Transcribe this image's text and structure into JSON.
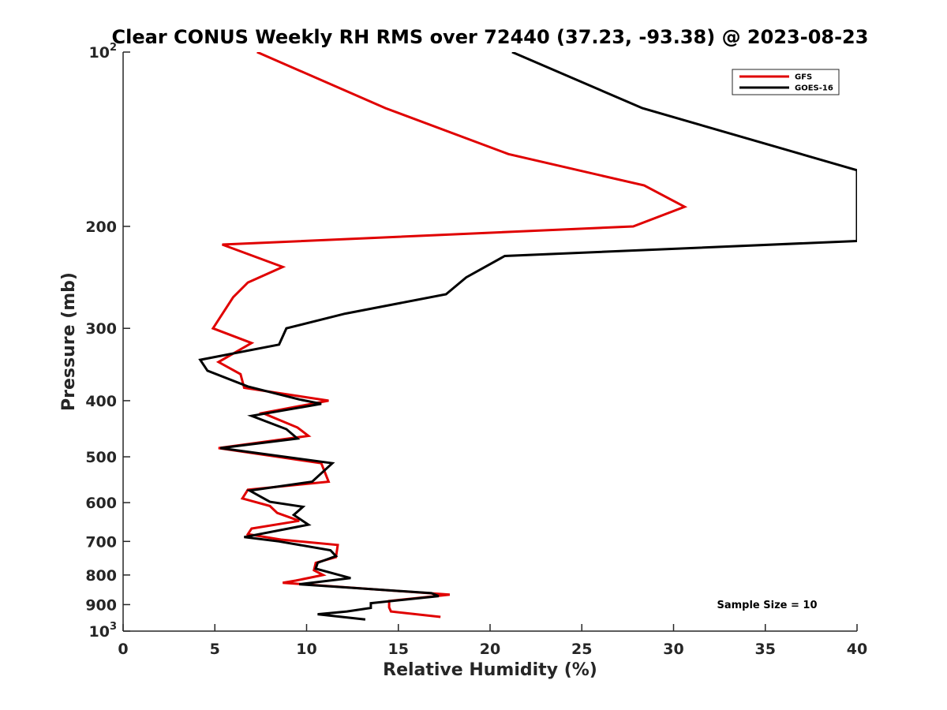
{
  "chart_data": {
    "type": "line",
    "title": "Clear CONUS Weekly RH RMS over 72440 (37.23, -93.38) @ 2023-08-23",
    "xlabel": "Relative Humidity (%)",
    "ylabel": "Pressure (mb)",
    "xlim": [
      0,
      40
    ],
    "ylim": [
      100,
      1000
    ],
    "y_scale": "log",
    "y_reversed": true,
    "x_ticks": [
      0,
      5,
      10,
      15,
      20,
      25,
      30,
      35,
      40
    ],
    "x_tick_labels": [
      "0",
      "5",
      "10",
      "15",
      "20",
      "25",
      "30",
      "35",
      "40"
    ],
    "y_ticks": [
      100,
      200,
      300,
      400,
      500,
      600,
      700,
      800,
      900,
      1000
    ],
    "y_tick_labels": [
      {
        "base": "10",
        "exp": "2"
      },
      {
        "base": "200"
      },
      {
        "base": "300"
      },
      {
        "base": "400"
      },
      {
        "base": "500"
      },
      {
        "base": "600"
      },
      {
        "base": "700"
      },
      {
        "base": "800"
      },
      {
        "base": "900"
      },
      {
        "base": "10",
        "exp": "3"
      }
    ],
    "grid": false,
    "legend_position": "top-right",
    "annotation": "Sample Size = 10",
    "series": [
      {
        "name": "GFS",
        "color": "#e00000",
        "points": [
          [
            7.3,
            100
          ],
          [
            14.3,
            125
          ],
          [
            21.0,
            150
          ],
          [
            28.4,
            170
          ],
          [
            30.6,
            185
          ],
          [
            27.8,
            200
          ],
          [
            5.4,
            215
          ],
          [
            8.7,
            235
          ],
          [
            6.8,
            250
          ],
          [
            6.0,
            265
          ],
          [
            4.9,
            300
          ],
          [
            7.0,
            318
          ],
          [
            5.2,
            343
          ],
          [
            6.4,
            360
          ],
          [
            6.6,
            380
          ],
          [
            11.2,
            400
          ],
          [
            7.6,
            420
          ],
          [
            9.5,
            445
          ],
          [
            10.1,
            460
          ],
          [
            5.2,
            483
          ],
          [
            10.8,
            513
          ],
          [
            11.2,
            552
          ],
          [
            6.8,
            570
          ],
          [
            6.5,
            590
          ],
          [
            8.0,
            608
          ],
          [
            8.4,
            625
          ],
          [
            9.6,
            645
          ],
          [
            7.0,
            665
          ],
          [
            6.8,
            680
          ],
          [
            8.6,
            695
          ],
          [
            11.7,
            710
          ],
          [
            11.6,
            745
          ],
          [
            10.5,
            762
          ],
          [
            10.4,
            785
          ],
          [
            10.9,
            800
          ],
          [
            9.4,
            818
          ],
          [
            8.7,
            825
          ],
          [
            17.8,
            865
          ],
          [
            14.5,
            887
          ],
          [
            14.5,
            910
          ],
          [
            14.6,
            925
          ],
          [
            17.3,
            945
          ]
        ]
      },
      {
        "name": "GOES-16",
        "color": "#000000",
        "points": [
          [
            21.2,
            100
          ],
          [
            28.3,
            125
          ],
          [
            40.0,
            160
          ],
          [
            40.0,
            212
          ],
          [
            20.8,
            225
          ],
          [
            18.7,
            245
          ],
          [
            17.6,
            262
          ],
          [
            12.1,
            283
          ],
          [
            8.9,
            300
          ],
          [
            8.5,
            320
          ],
          [
            4.2,
            340
          ],
          [
            4.6,
            355
          ],
          [
            6.8,
            378
          ],
          [
            9.6,
            398
          ],
          [
            10.8,
            405
          ],
          [
            7.0,
            425
          ],
          [
            8.9,
            448
          ],
          [
            9.5,
            465
          ],
          [
            5.3,
            483
          ],
          [
            11.4,
            513
          ],
          [
            10.3,
            552
          ],
          [
            6.9,
            572
          ],
          [
            8.0,
            598
          ],
          [
            9.8,
            610
          ],
          [
            9.3,
            630
          ],
          [
            10.1,
            655
          ],
          [
            6.6,
            688
          ],
          [
            8.5,
            700
          ],
          [
            11.3,
            725
          ],
          [
            11.6,
            742
          ],
          [
            10.6,
            762
          ],
          [
            10.5,
            780
          ],
          [
            12.4,
            810
          ],
          [
            9.6,
            830
          ],
          [
            16.8,
            860
          ],
          [
            17.2,
            870
          ],
          [
            13.5,
            895
          ],
          [
            13.5,
            912
          ],
          [
            12.2,
            925
          ],
          [
            10.6,
            935
          ],
          [
            13.2,
            955
          ]
        ]
      }
    ]
  }
}
